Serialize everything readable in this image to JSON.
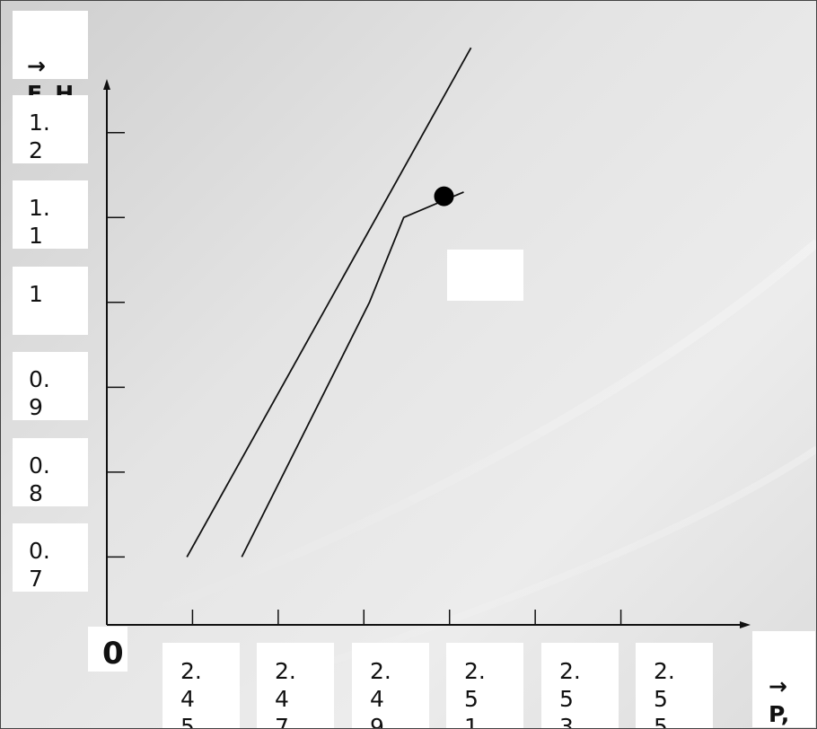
{
  "chart_data": {
    "type": "line",
    "ylabel_arrow": "→",
    "ylabel": "F, H",
    "xlabel_arrow": "→",
    "xlabel": "P, H",
    "origin_label": "0",
    "x_tick_labels": [
      "2.45",
      "2.47",
      "2.49",
      "2.51",
      "2.53",
      "2.55"
    ],
    "y_tick_labels": [
      "1.2",
      "1.1",
      "1",
      "0.9",
      "0.8",
      "0.7"
    ],
    "xlim": [
      2.43,
      2.57
    ],
    "ylim": [
      0.62,
      1.26
    ],
    "series": [
      {
        "values": [
          [
            2.4615,
            0.7
          ],
          [
            2.4913,
            1.0
          ],
          [
            2.4993,
            1.1
          ],
          [
            2.5133,
            1.13
          ]
        ]
      },
      {
        "values": [
          [
            2.4487,
            0.7
          ],
          [
            2.515,
            1.3
          ]
        ]
      }
    ],
    "intersection_point": [
      2.5087,
      1.125
    ],
    "grid": false,
    "marker_color": "#000000"
  }
}
